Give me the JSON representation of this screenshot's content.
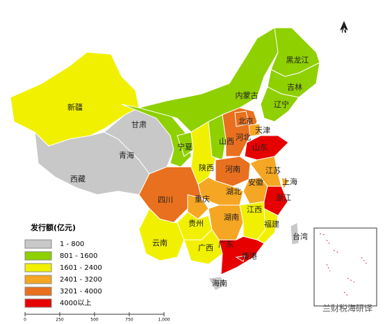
{
  "regions": [
    {
      "name": "新疆",
      "color": "#f0f000"
    },
    {
      "name": "西藏",
      "color": "#c8c8c8"
    },
    {
      "name": "青海",
      "color": "#c8c8c8"
    },
    {
      "name": "甘肃",
      "color": "#8fd000"
    },
    {
      "name": "内蒙古",
      "color": "#8fd000"
    },
    {
      "name": "黑龙江",
      "color": "#8fd000"
    },
    {
      "name": "吉林",
      "color": "#8fd000"
    },
    {
      "name": "辽宁",
      "color": "#8fd000"
    },
    {
      "name": "宁夏",
      "color": "#8fd000"
    },
    {
      "name": "陕西",
      "color": "#f0f000"
    },
    {
      "name": "山西",
      "color": "#8fd000"
    },
    {
      "name": "河北",
      "color": "#e8701e"
    },
    {
      "name": "北京",
      "color": "#e8701e"
    },
    {
      "name": "天津",
      "color": "#f5a623"
    },
    {
      "name": "山东",
      "color": "#e60000"
    },
    {
      "name": "河南",
      "color": "#e8701e"
    },
    {
      "name": "江苏",
      "color": "#f5a623"
    },
    {
      "name": "上海",
      "color": "#f5a623"
    },
    {
      "name": "安徽",
      "color": "#f5a623"
    },
    {
      "name": "浙江",
      "color": "#e60000"
    },
    {
      "name": "湖北",
      "color": "#f5a623"
    },
    {
      "name": "四川",
      "color": "#e8701e"
    },
    {
      "name": "重庆",
      "color": "#f5a623"
    },
    {
      "name": "贵州",
      "color": "#f0f000"
    },
    {
      "name": "湖南",
      "color": "#f5a623"
    },
    {
      "name": "江西",
      "color": "#f0f000"
    },
    {
      "name": "福建",
      "color": "#f0f000"
    },
    {
      "name": "云南",
      "color": "#f0f000"
    },
    {
      "name": "广西",
      "color": "#f0f000"
    },
    {
      "name": "广东",
      "color": "#e60000"
    },
    {
      "name": "海南",
      "color": "#c8c8c8"
    },
    {
      "name": "台湾",
      "color": "#c8c8c8"
    },
    {
      "name": "香港",
      "color": "#e60000"
    }
  ],
  "legend": {
    "title": "发行额(亿元)",
    "items": [
      {
        "label": "1 - 800",
        "color": "#c8c8c8"
      },
      {
        "label": "801 - 1600",
        "color": "#8fd000"
      },
      {
        "label": "1601 - 2400",
        "color": "#f0f000"
      },
      {
        "label": "2401 - 3200",
        "color": "#f5a623"
      },
      {
        "label": "3201 - 4000",
        "color": "#e8701e"
      },
      {
        "label": "4000以上",
        "color": "#e60000"
      }
    ]
  },
  "north": "N",
  "scale": [
    "0",
    "250",
    "500",
    "750",
    "1,000"
  ],
  "watermark": "兰财税海研译"
}
